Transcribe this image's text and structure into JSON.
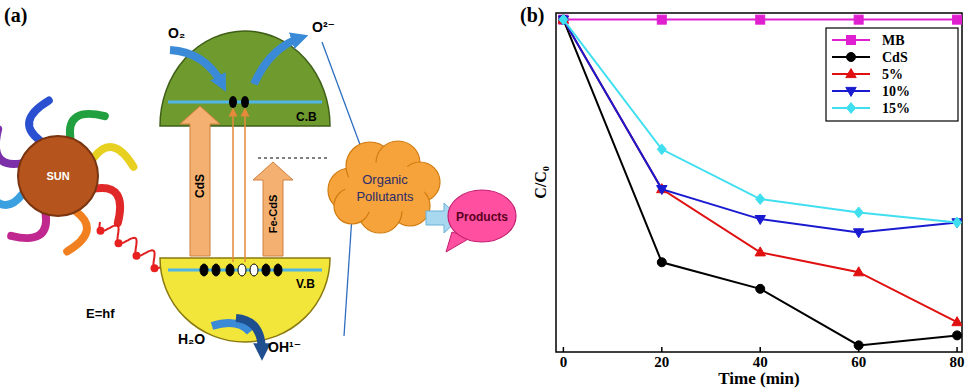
{
  "chart_data": {
    "type": "line",
    "title": "(b)",
    "x_label": "Time (min)",
    "y_label": "C/C₀",
    "x": [
      0,
      20,
      40,
      60,
      80
    ],
    "xlim": [
      -1.5,
      81
    ],
    "xticks": [
      0,
      20,
      40,
      60,
      80
    ],
    "ylim": [
      0,
      1.02
    ],
    "yticks": [],
    "tick_labels": "x",
    "grid": false,
    "legend": "upper right",
    "series": [
      {
        "name": "MB",
        "color": "#e020d0",
        "marker": "square",
        "values": [
          1.0,
          1.0,
          1.0,
          1.0,
          1.0
        ]
      },
      {
        "name": "CdS",
        "color": "#000000",
        "marker": "circle",
        "values": [
          1.0,
          0.27,
          0.19,
          0.02,
          0.05
        ]
      },
      {
        "name": "5%",
        "color": "#e01010",
        "marker": "triangle-up",
        "values": [
          1.0,
          0.49,
          0.3,
          0.24,
          0.09
        ]
      },
      {
        "name": "10%",
        "color": "#1a1ad0",
        "marker": "triangle-down",
        "values": [
          1.0,
          0.49,
          0.4,
          0.36,
          0.39
        ]
      },
      {
        "name": "15%",
        "color": "#40dff0",
        "marker": "diamond",
        "values": [
          1.0,
          0.61,
          0.46,
          0.42,
          0.39
        ]
      }
    ]
  },
  "diagram": {
    "panel_label": "(a)",
    "sun": "SUN",
    "energy": "E=hf",
    "conduction_band": "C.B",
    "valence_band": "V.B",
    "arrows": [
      "CdS",
      "Fe-CdS"
    ],
    "oxygen": "O₂",
    "superoxide": "O²⁻",
    "water": "H₂O",
    "hydroxyl": "OH¹⁻",
    "pollutants": [
      "Organic",
      "Pollutants"
    ],
    "products": "Products"
  }
}
